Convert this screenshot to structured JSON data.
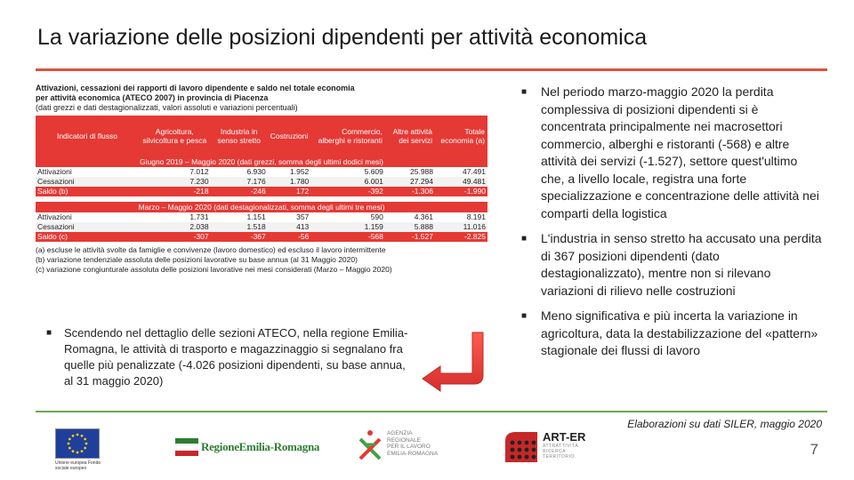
{
  "slide": {
    "title": "La variazione delle posizioni dipendenti per attività economica",
    "page_number": "7",
    "source": "Elaborazioni su dati SILER, maggio 2020"
  },
  "table": {
    "caption_line1": "Attivazioni, cessazioni dei rapporti di lavoro dipendente e saldo nel totale economia",
    "caption_line2": "per attività economica (ATECO 2007) in provincia di Piacenza",
    "caption_line3": "(dati grezzi e dati destagionalizzati, valori assoluti e variazioni percentuali)",
    "headers": [
      "Indicatori di flusso",
      "Agricoltura, silvicoltura e pesca",
      "Industria in senso stretto",
      "Costruzioni",
      "Commercio, alberghi e ristoranti",
      "Altre attività dei servizi",
      "Totale economia (a)"
    ],
    "period1": "Giugno 2019 – Maggio 2020 (dati grezzi, somma degli ultimi dodici mesi)",
    "period1_rows": [
      {
        "label": "Attivazioni",
        "values": [
          "7.012",
          "6.930",
          "1.952",
          "5.609",
          "25.988",
          "47.491"
        ]
      },
      {
        "label": "Cessazioni",
        "values": [
          "7.230",
          "7.176",
          "1.780",
          "6.001",
          "27.294",
          "49.481"
        ]
      },
      {
        "label": "Saldo (b)",
        "values": [
          "-218",
          "-246",
          "172",
          "-392",
          "-1.306",
          "-1.990"
        ]
      }
    ],
    "period2": "Marzo – Maggio 2020 (dati destagionalizzati, somma degli ultimi tre mesi)",
    "period2_rows": [
      {
        "label": "Attivazioni",
        "values": [
          "1.731",
          "1.151",
          "357",
          "590",
          "4.361",
          "8.191"
        ]
      },
      {
        "label": "Cessazioni",
        "values": [
          "2.038",
          "1.518",
          "413",
          "1.159",
          "5.888",
          "11.016"
        ]
      },
      {
        "label": "Saldo (c)",
        "values": [
          "-307",
          "-367",
          "-56",
          "-568",
          "-1.527",
          "-2.825"
        ]
      }
    ],
    "notes": [
      "(a) escluse le attività svolte da famiglie e convivenze (lavoro domestico) ed escluso il lavoro intermittente",
      "(b) variazione tendenziale assoluta delle posizioni lavorative su base annua (al 31 Maggio 2020)",
      "(c) variazione congiunturale assoluta delle posizioni lavorative nei mesi considerati (Marzo – Maggio 2020)"
    ]
  },
  "left_bullet": "Scendendo nel dettaglio delle sezioni ATECO, nella regione Emilia-Romagna, le attività di trasporto e magazzinaggio si segnalano fra quelle più penalizzate (-4.026 posizioni dipendenti, su base annua, al 31 maggio 2020)",
  "right_bullets": [
    "Nel periodo marzo-maggio 2020 la perdita complessiva di posizioni dipendenti si è concentrata principalmente nei macrosettori commercio, alberghi e ristoranti (-568) e altre attività dei servizi (-1.527), settore quest'ultimo che, a livello locale, registra una forte specializzazione e concentrazione delle attività nei comparti della logistica",
    "L'industria in senso stretto ha accusato una perdita di 367 posizioni dipendenti (dato destagionalizzato), mentre non si rilevano variazioni di rilievo nelle costruzioni",
    "Meno significativa e più incerta la variazione in agricoltura, data la destabilizzazione del «pattern» stagionale dei flussi di lavoro"
  ],
  "logos": {
    "eu_caption": "Unione europea Fondo sociale europeo",
    "rer_name": "RegioneEmilia-Romagna",
    "agenzia_text": [
      "AGENZIA",
      "REGIONALE",
      "PER IL LAVORO",
      "EMILIA-ROMAGNA"
    ],
    "arter_name": "ART-ER",
    "arter_sub": [
      "ATTRATTIVITÀ",
      "RICERCA",
      "TERRITORIO"
    ]
  },
  "colors": {
    "accent_red": "#e53935",
    "title_rule": "#d9533f",
    "footer_rule": "#6aa84f"
  }
}
